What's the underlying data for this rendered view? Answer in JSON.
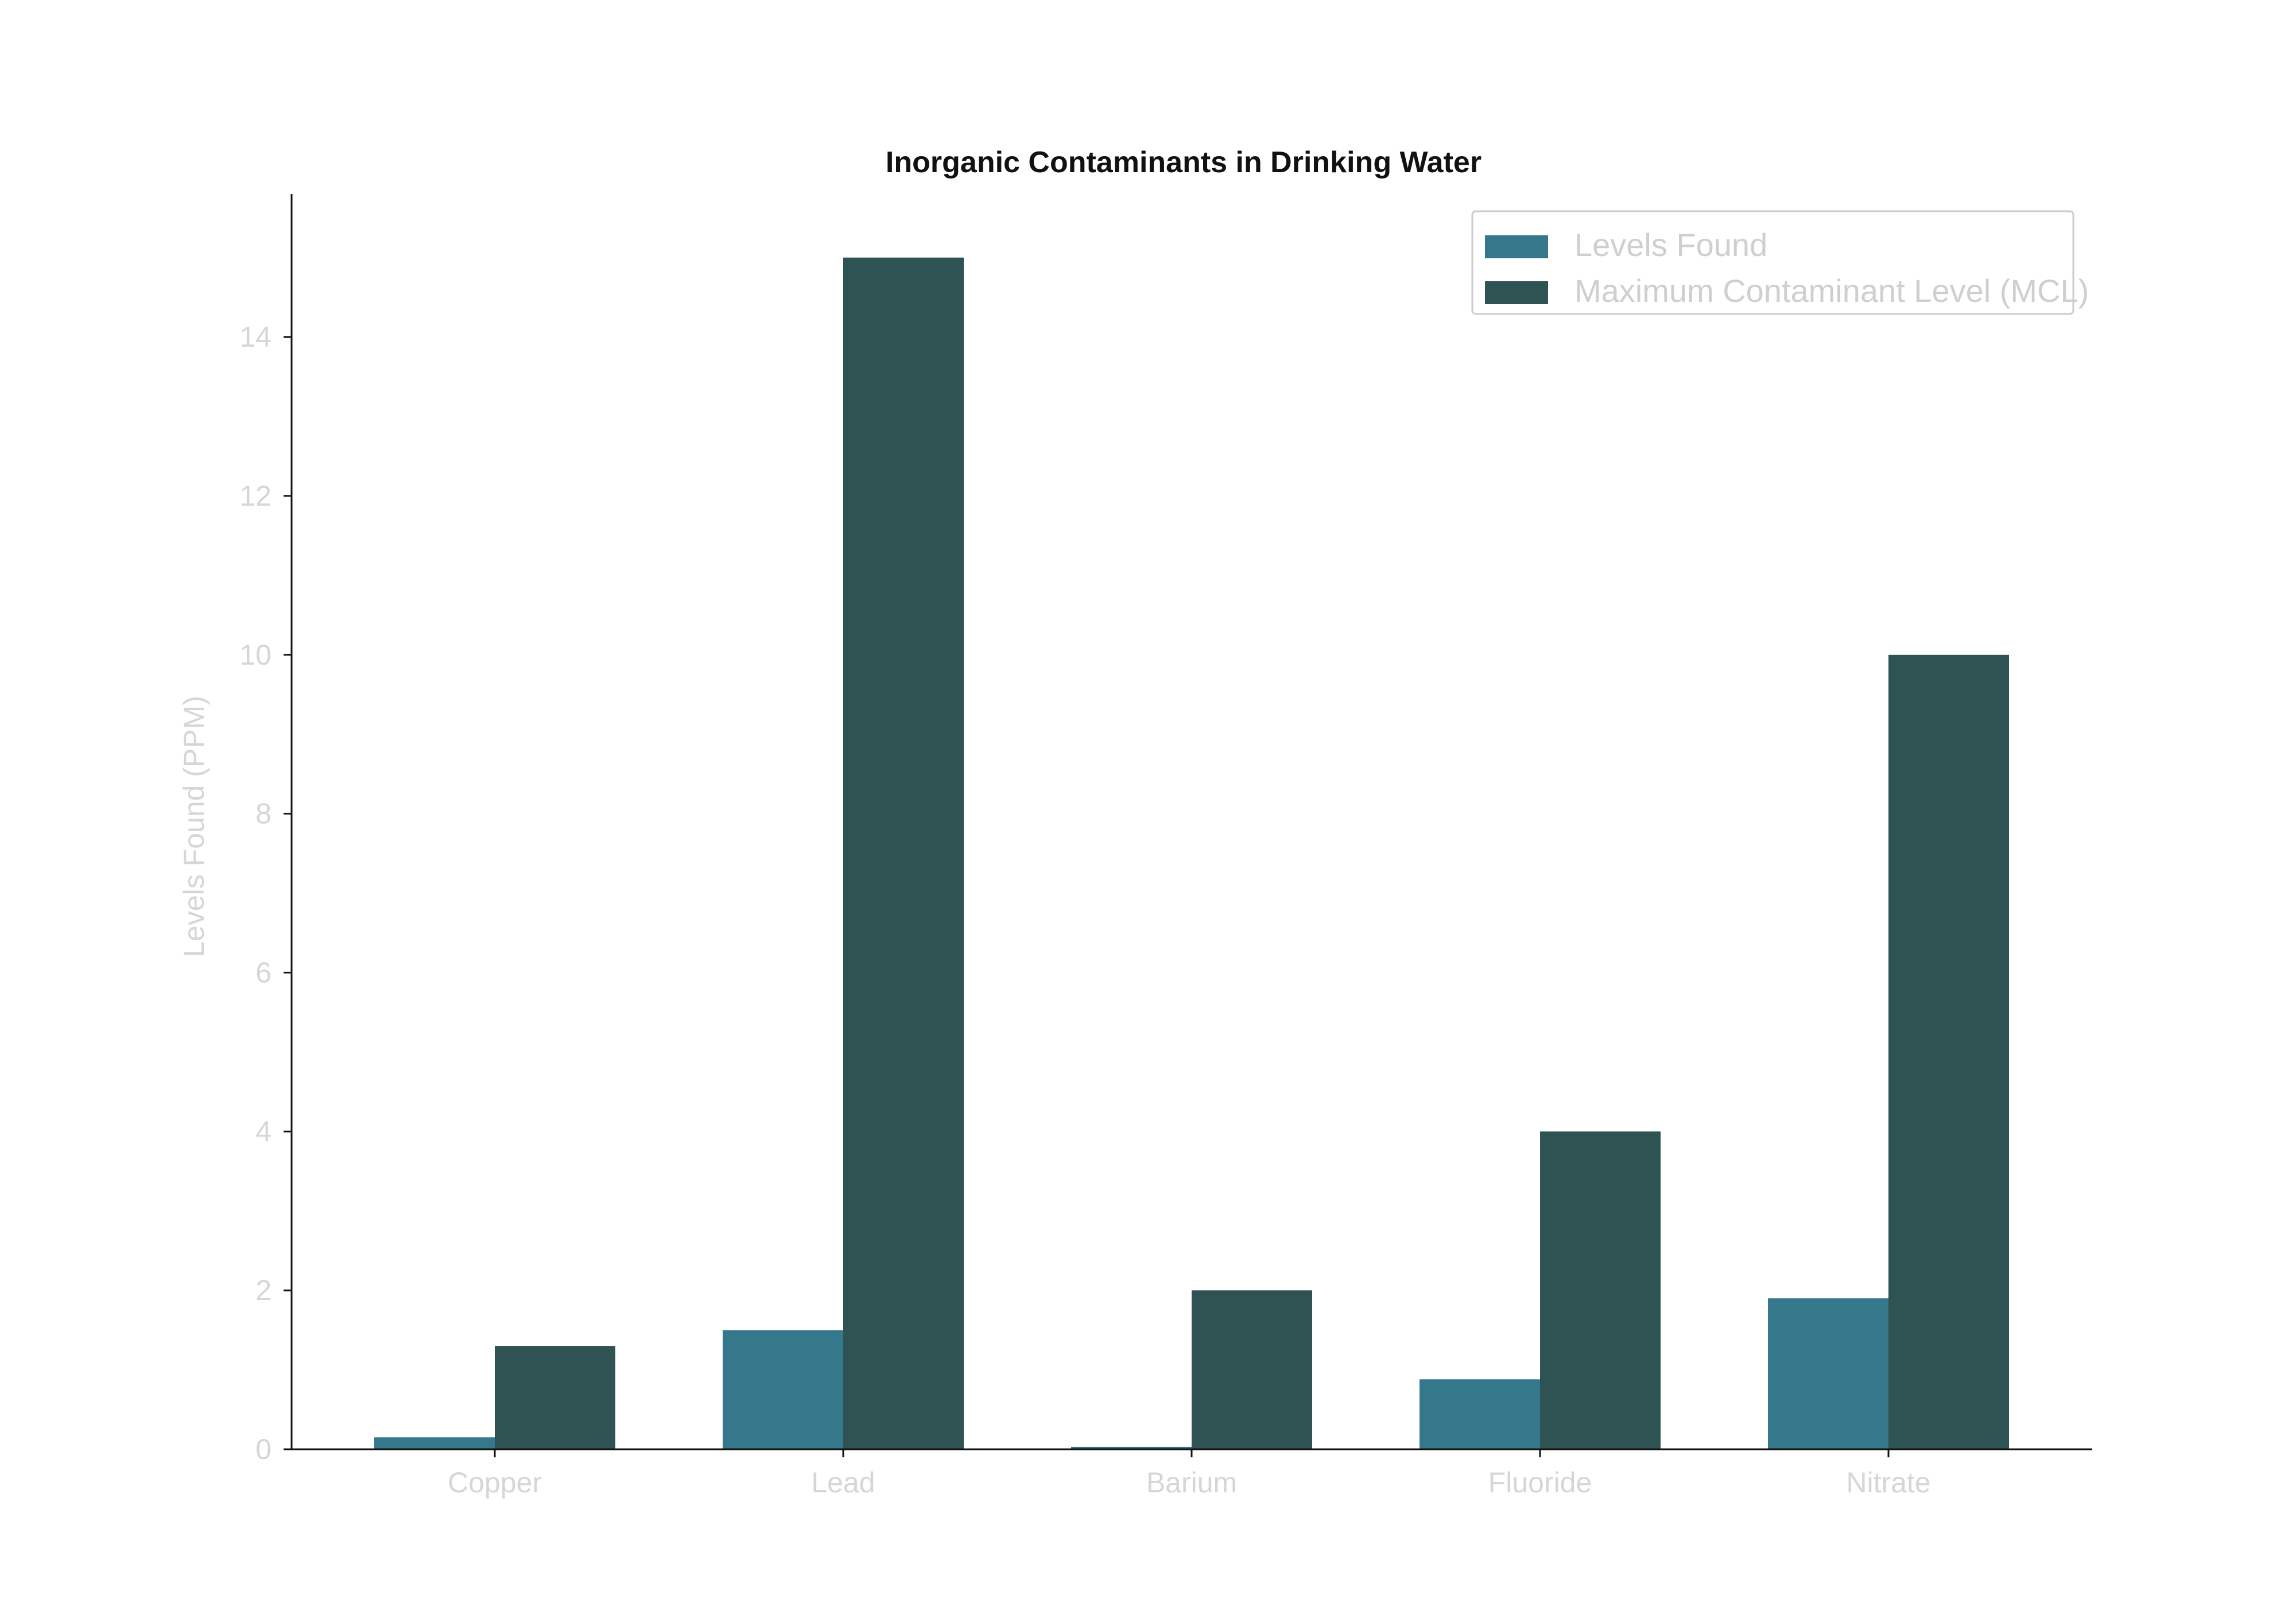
{
  "chart_data": {
    "type": "bar",
    "title": "Inorganic Contaminants in Drinking Water",
    "xlabel": "",
    "ylabel": "Levels Found (PPM)",
    "categories": [
      "Copper",
      "Lead",
      "Barium",
      "Fluoride",
      "Nitrate"
    ],
    "series": [
      {
        "name": "Levels Found",
        "values": [
          0.15,
          1.5,
          0.03,
          0.88,
          1.9
        ],
        "color": "#35788b"
      },
      {
        "name": "Maximum Contaminant Level (MCL)",
        "values": [
          1.3,
          15,
          2,
          4,
          10
        ],
        "color": "#2f5253"
      }
    ],
    "ylim": [
      0,
      15.8
    ],
    "yticks": [
      0,
      2,
      4,
      6,
      8,
      10,
      12,
      14
    ],
    "ytick_labels": [
      "0",
      "2",
      "4",
      "6",
      "8",
      "10",
      "12",
      "14"
    ],
    "grid": false,
    "legend_position": "top-right",
    "axis_color": "#111111"
  }
}
